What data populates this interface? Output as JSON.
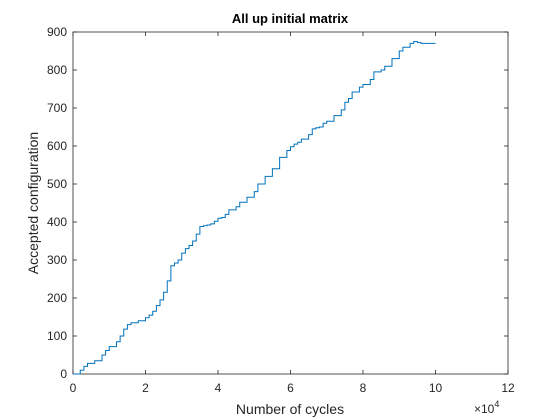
{
  "chart_data": {
    "type": "line",
    "title": "All up initial matrix",
    "xlabel": "Number of cycles",
    "ylabel": "Accepted configuration",
    "x_exponent_label": "×10",
    "x_exponent_power": "4",
    "xlim": [
      0,
      12
    ],
    "ylim": [
      0,
      900
    ],
    "xticks": [
      "0",
      "2",
      "4",
      "6",
      "8",
      "10",
      "12"
    ],
    "yticks": [
      "0",
      "100",
      "200",
      "300",
      "400",
      "500",
      "600",
      "700",
      "800",
      "900"
    ],
    "grid": false,
    "line_color": "#0072BD",
    "series": [
      {
        "x": [
          0,
          0.2,
          0.3,
          0.4,
          0.6,
          0.8,
          0.9,
          1.0,
          1.2,
          1.3,
          1.4,
          1.5,
          1.6,
          1.8,
          2.0,
          2.1,
          2.2,
          2.3,
          2.4,
          2.5,
          2.6,
          2.7,
          2.8,
          2.9,
          3.0,
          3.1,
          3.2,
          3.3,
          3.4,
          3.5,
          3.6,
          3.7,
          3.8,
          3.9,
          4.0,
          4.1,
          4.2,
          4.3,
          4.5,
          4.6,
          4.8,
          5.0,
          5.1,
          5.3,
          5.5,
          5.7,
          5.9,
          6.0,
          6.1,
          6.2,
          6.3,
          6.5,
          6.6,
          6.7,
          6.8,
          6.9,
          7.0,
          7.2,
          7.4,
          7.5,
          7.6,
          7.7,
          7.9,
          8.0,
          8.2,
          8.3,
          8.5,
          8.6,
          8.8,
          9.0,
          9.1,
          9.3,
          9.4,
          9.5,
          9.6,
          9.7,
          9.9,
          10.0
        ],
        "values": [
          0,
          10,
          20,
          28,
          35,
          50,
          62,
          72,
          85,
          100,
          118,
          130,
          135,
          140,
          148,
          155,
          165,
          180,
          195,
          215,
          245,
          285,
          292,
          300,
          318,
          330,
          338,
          350,
          368,
          388,
          390,
          392,
          395,
          402,
          410,
          412,
          420,
          432,
          440,
          452,
          465,
          480,
          500,
          520,
          540,
          570,
          588,
          598,
          605,
          610,
          618,
          630,
          645,
          648,
          650,
          660,
          665,
          680,
          695,
          715,
          725,
          742,
          755,
          762,
          775,
          795,
          800,
          810,
          830,
          850,
          860,
          870,
          875,
          872,
          870,
          870,
          870,
          870
        ]
      }
    ]
  }
}
